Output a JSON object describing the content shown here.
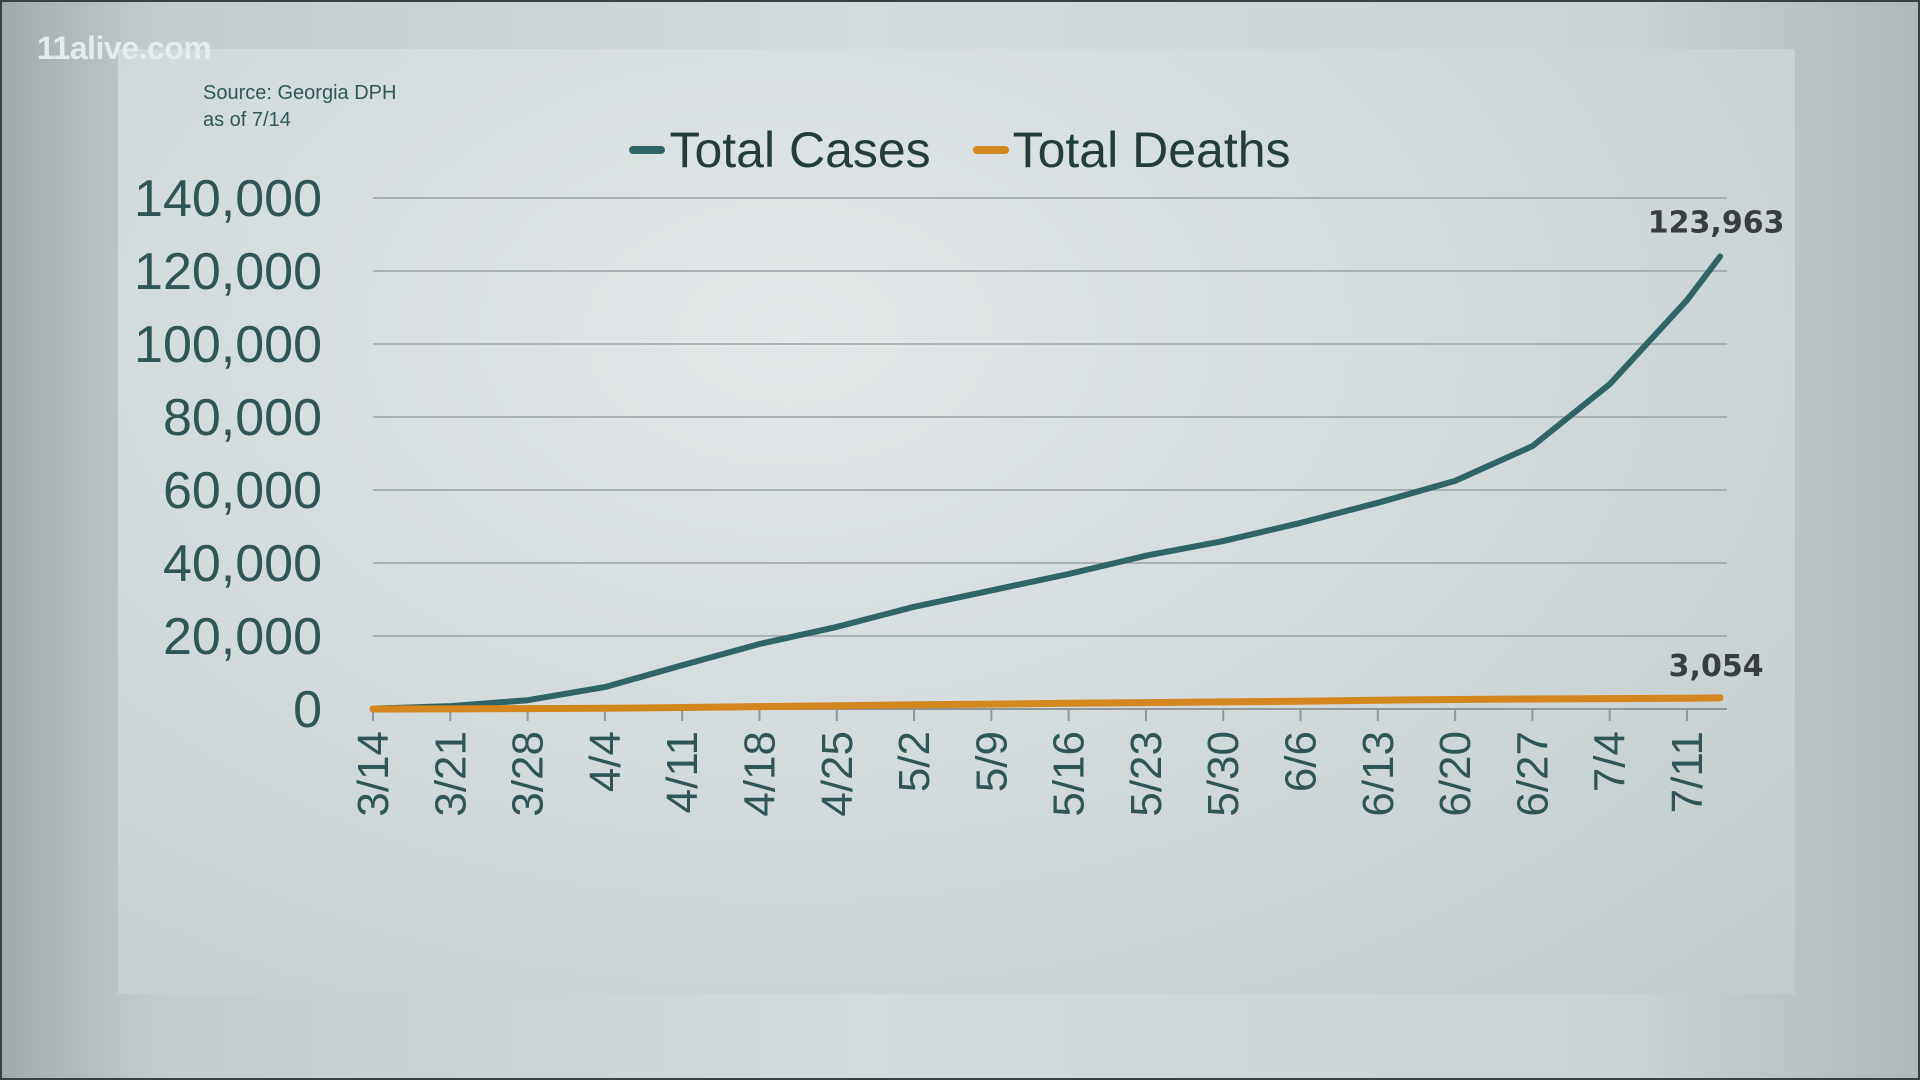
{
  "branding": {
    "logo": "11alive.com"
  },
  "source": {
    "line1": "Source: Georgia DPH",
    "line2": "as of 7/14"
  },
  "colors": {
    "cases": "#2f6566",
    "deaths": "#d4861f",
    "axis_text": "#2e5656",
    "label_text": "#3a3d3e"
  },
  "chart_data": {
    "type": "line",
    "title": "",
    "xlabel": "",
    "ylabel": "",
    "ylim": [
      0,
      140000
    ],
    "yticks": [
      "0",
      "20,000",
      "40,000",
      "60,000",
      "80,000",
      "100,000",
      "120,000",
      "140,000"
    ],
    "ytick_values": [
      0,
      20000,
      40000,
      60000,
      80000,
      100000,
      120000,
      140000
    ],
    "xtick_labels": [
      "3/14",
      "3/21",
      "3/28",
      "4/4",
      "4/11",
      "4/18",
      "4/25",
      "5/2",
      "5/9",
      "5/16",
      "5/23",
      "5/30",
      "6/6",
      "6/13",
      "6/20",
      "6/27",
      "7/4",
      "7/11"
    ],
    "x_days": [
      0,
      7,
      14,
      21,
      28,
      35,
      42,
      49,
      56,
      63,
      70,
      77,
      84,
      91,
      98,
      105,
      112,
      119,
      122
    ],
    "x_dates": [
      "3/14",
      "3/21",
      "3/28",
      "4/4",
      "4/11",
      "4/18",
      "4/25",
      "5/2",
      "5/9",
      "5/16",
      "5/23",
      "5/30",
      "6/6",
      "6/13",
      "6/20",
      "6/27",
      "7/4",
      "7/11",
      "7/14"
    ],
    "grid": true,
    "legend": "top-center",
    "series": [
      {
        "name": "Total Cases",
        "values": [
          100,
          800,
          2400,
          6000,
          12000,
          17800,
          22500,
          28000,
          32500,
          37000,
          42000,
          46000,
          51000,
          56500,
          62500,
          72000,
          89000,
          112000,
          123963
        ],
        "end_label": "123,963"
      },
      {
        "name": "Total Deaths",
        "values": [
          1,
          25,
          100,
          200,
          400,
          650,
          900,
          1150,
          1350,
          1550,
          1750,
          1950,
          2150,
          2400,
          2600,
          2750,
          2850,
          2950,
          3054
        ],
        "end_label": "3,054"
      }
    ]
  }
}
